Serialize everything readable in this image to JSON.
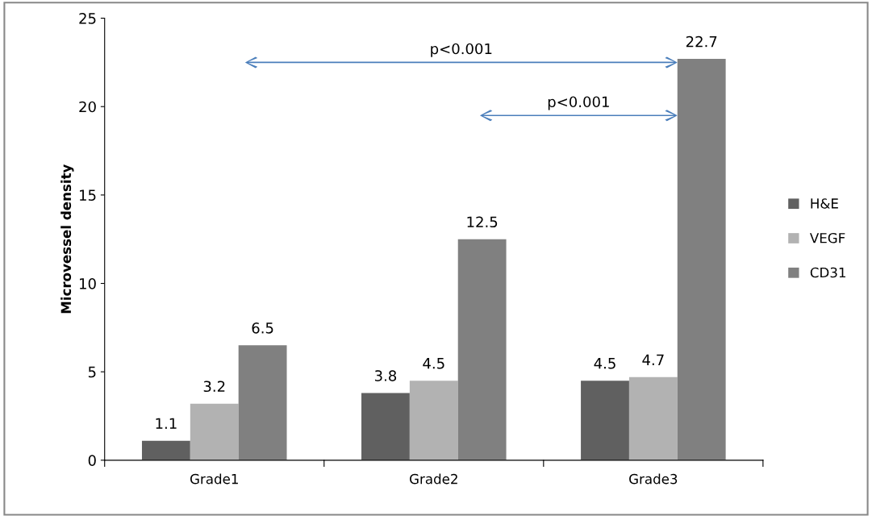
{
  "chart_data": {
    "type": "bar",
    "ylabel": "Microvessel density",
    "categories": [
      "Grade1",
      "Grade2",
      "Grade3"
    ],
    "series": [
      {
        "name": "H&E",
        "color": "#606060",
        "values": [
          1.1,
          3.8,
          4.5
        ]
      },
      {
        "name": "VEGF",
        "color": "#b2b2b2",
        "values": [
          3.2,
          4.5,
          4.7
        ]
      },
      {
        "name": "CD31",
        "color": "#808080",
        "values": [
          6.5,
          12.5,
          22.7
        ]
      }
    ],
    "ylim": [
      0,
      25
    ],
    "yticks": [
      0,
      5,
      10,
      15,
      20,
      25
    ],
    "grid": false,
    "legend": "right",
    "data_labels": true,
    "annotations": [
      "p<0.001",
      "p<0.001"
    ]
  }
}
